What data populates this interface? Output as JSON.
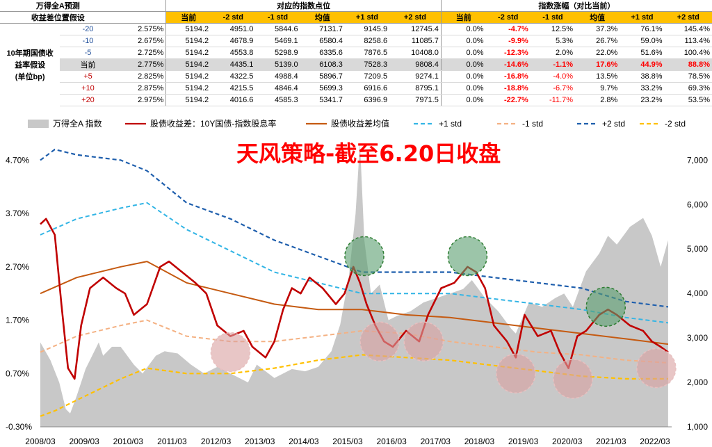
{
  "table": {
    "header_row1": {
      "label1": "万得全A预测",
      "group_points": "对应的指数点位",
      "group_change": "指数涨幅（对比当前）"
    },
    "header_row2": {
      "label2": "收益差位置假设",
      "cols_points": [
        "当前",
        "-2 std",
        "-1 std",
        "均值",
        "+1 std",
        "+2 std"
      ],
      "cols_change": [
        "当前",
        "-2 std",
        "-1 std",
        "均值",
        "+1 std",
        "+2 std"
      ]
    },
    "side_label": [
      "10年期国债收",
      "益率假设",
      "(单位bp)"
    ],
    "rows": [
      {
        "bp": "-20",
        "yield": "2.575%",
        "points": [
          "5194.2",
          "4951.0",
          "5844.6",
          "7131.7",
          "9145.9",
          "12745.4"
        ],
        "change": [
          "0.0%",
          "-4.7%",
          "12.5%",
          "37.3%",
          "76.1%",
          "145.4%"
        ],
        "highlight": false
      },
      {
        "bp": "-10",
        "yield": "2.675%",
        "points": [
          "5194.2",
          "4678.9",
          "5469.1",
          "6580.4",
          "8258.6",
          "11085.7"
        ],
        "change": [
          "0.0%",
          "-9.9%",
          "5.3%",
          "26.7%",
          "59.0%",
          "113.4%"
        ],
        "highlight": false
      },
      {
        "bp": "-5",
        "yield": "2.725%",
        "points": [
          "5194.2",
          "4553.8",
          "5298.9",
          "6335.6",
          "7876.5",
          "10408.0"
        ],
        "change": [
          "0.0%",
          "-12.3%",
          "2.0%",
          "22.0%",
          "51.6%",
          "100.4%"
        ],
        "highlight": false
      },
      {
        "bp": "当前",
        "yield": "2.775%",
        "points": [
          "5194.2",
          "4435.1",
          "5139.0",
          "6108.3",
          "7528.3",
          "9808.4"
        ],
        "change": [
          "0.0%",
          "-14.6%",
          "-1.1%",
          "17.6%",
          "44.9%",
          "88.8%"
        ],
        "highlight": true
      },
      {
        "bp": "+5",
        "yield": "2.825%",
        "points": [
          "5194.2",
          "4322.5",
          "4988.4",
          "5896.7",
          "7209.5",
          "9274.1"
        ],
        "change": [
          "0.0%",
          "-16.8%",
          "-4.0%",
          "13.5%",
          "38.8%",
          "78.5%"
        ],
        "highlight": false
      },
      {
        "bp": "+10",
        "yield": "2.875%",
        "points": [
          "5194.2",
          "4215.5",
          "4846.4",
          "5699.3",
          "6916.6",
          "8795.1"
        ],
        "change": [
          "0.0%",
          "-18.8%",
          "-6.7%",
          "9.7%",
          "33.2%",
          "69.3%"
        ],
        "highlight": false
      },
      {
        "bp": "+20",
        "yield": "2.975%",
        "points": [
          "5194.2",
          "4016.6",
          "4585.3",
          "5341.7",
          "6396.9",
          "7971.5"
        ],
        "change": [
          "0.0%",
          "-22.7%",
          "-11.7%",
          "2.8%",
          "23.2%",
          "53.5%"
        ],
        "highlight": false
      }
    ]
  },
  "chart_data": {
    "type": "line",
    "title": "天风策略-截至6.20日收盘",
    "x_ticks": [
      "2008/03",
      "2009/03",
      "2010/03",
      "2011/03",
      "2012/03",
      "2013/03",
      "2014/03",
      "2015/03",
      "2016/03",
      "2017/03",
      "2018/03",
      "2019/03",
      "2020/03",
      "2021/03",
      "2022/03"
    ],
    "y_left_ticks": [
      "-0.30%",
      "0.70%",
      "1.70%",
      "2.70%",
      "3.70%",
      "4.70%"
    ],
    "y_left_range": [
      -0.3,
      5.2
    ],
    "y_right_ticks": [
      "1,000",
      "2,000",
      "3,000",
      "4,000",
      "5,000",
      "6,000",
      "7,000"
    ],
    "y_right_range": [
      1000,
      7600
    ],
    "legend": [
      "万得全A 指数",
      "股债收益差：10Y国债-指数股息率",
      "股债收益差均值",
      "+1 std",
      "-1 std",
      "+2 std",
      "-2 std"
    ],
    "colors": {
      "index_area": "#c8c8c8",
      "spread": "#c00000",
      "mean": "#c55a11",
      "plus1": "#33b5e5",
      "minus1": "#f4b183",
      "plus2": "#1f5fad",
      "minus2": "#ffc000",
      "circle_green": "#5a9e6f",
      "circle_red": "#d9a0a0"
    },
    "series": [
      {
        "name": "万得全A 指数",
        "axis": "right",
        "x": [
          2008.17,
          2008.4,
          2008.6,
          2008.75,
          2008.85,
          2009.0,
          2009.2,
          2009.5,
          2009.6,
          2009.8,
          2010.0,
          2010.3,
          2010.5,
          2010.8,
          2011.0,
          2011.3,
          2011.6,
          2011.9,
          2012.2,
          2012.5,
          2012.9,
          2013.1,
          2013.5,
          2013.9,
          2014.2,
          2014.5,
          2014.8,
          2015.0,
          2015.2,
          2015.35,
          2015.45,
          2015.55,
          2015.7,
          2015.9,
          2016.1,
          2016.3,
          2016.6,
          2016.9,
          2017.2,
          2017.5,
          2017.8,
          2018.0,
          2018.3,
          2018.6,
          2018.9,
          2019.0,
          2019.3,
          2019.6,
          2019.9,
          2020.1,
          2020.3,
          2020.6,
          2020.9,
          2021.1,
          2021.3,
          2021.6,
          2021.9,
          2022.1,
          2022.3,
          2022.47
        ],
        "y": [
          2900,
          2500,
          2000,
          1400,
          1300,
          1700,
          2300,
          2900,
          2600,
          2800,
          2800,
          2400,
          2200,
          2600,
          2700,
          2650,
          2400,
          2200,
          2350,
          2200,
          2000,
          2400,
          2100,
          2300,
          2250,
          2350,
          2700,
          3300,
          4400,
          5800,
          7400,
          5200,
          4000,
          4200,
          3400,
          3500,
          3600,
          3800,
          3900,
          4000,
          4100,
          4300,
          3900,
          3600,
          3200,
          3100,
          3800,
          3700,
          3900,
          4000,
          3700,
          4500,
          4900,
          5300,
          5100,
          5500,
          5700,
          5300,
          4600,
          5200
        ]
      },
      {
        "name": "股债收益差：10Y国债-指数股息率",
        "axis": "left",
        "x": [
          2008.17,
          2008.3,
          2008.5,
          2008.65,
          2008.8,
          2008.95,
          2009.1,
          2009.3,
          2009.6,
          2009.9,
          2010.1,
          2010.3,
          2010.6,
          2010.9,
          2011.1,
          2011.4,
          2011.7,
          2011.95,
          2012.2,
          2012.5,
          2012.8,
          2013.0,
          2013.3,
          2013.5,
          2013.7,
          2013.9,
          2014.1,
          2014.3,
          2014.6,
          2014.9,
          2015.1,
          2015.3,
          2015.45,
          2015.6,
          2015.8,
          2016.0,
          2016.2,
          2016.5,
          2016.8,
          2017.0,
          2017.3,
          2017.6,
          2017.9,
          2018.1,
          2018.3,
          2018.5,
          2018.8,
          2019.0,
          2019.2,
          2019.5,
          2019.8,
          2020.0,
          2020.2,
          2020.4,
          2020.6,
          2020.9,
          2021.1,
          2021.3,
          2021.6,
          2021.9,
          2022.1,
          2022.3,
          2022.47
        ],
        "y": [
          3.5,
          3.6,
          3.3,
          2.0,
          0.8,
          0.6,
          1.6,
          2.3,
          2.5,
          2.3,
          2.2,
          1.8,
          2.0,
          2.7,
          2.8,
          2.6,
          2.4,
          2.2,
          1.6,
          1.4,
          1.5,
          1.2,
          1.0,
          1.3,
          1.9,
          2.3,
          2.2,
          2.5,
          2.3,
          2.0,
          2.2,
          2.7,
          2.4,
          2.0,
          1.6,
          1.3,
          1.2,
          1.5,
          1.3,
          1.8,
          2.3,
          2.4,
          2.7,
          2.6,
          2.3,
          1.6,
          1.3,
          1.0,
          1.8,
          1.4,
          1.5,
          1.1,
          0.8,
          1.4,
          1.5,
          1.8,
          1.9,
          1.8,
          1.6,
          1.5,
          1.3,
          1.2,
          1.1
        ]
      },
      {
        "name": "股债收益差均值",
        "axis": "left",
        "x": [
          2008.17,
          2009.0,
          2010.0,
          2010.6,
          2011.5,
          2012.5,
          2013.5,
          2014.5,
          2015.5,
          2016.5,
          2017.5,
          2018.5,
          2019.5,
          2020.5,
          2021.5,
          2022.47
        ],
        "y": [
          2.2,
          2.5,
          2.7,
          2.8,
          2.4,
          2.2,
          2.0,
          1.9,
          1.9,
          1.8,
          1.75,
          1.65,
          1.55,
          1.45,
          1.35,
          1.25
        ]
      },
      {
        "name": "+1 std",
        "axis": "left",
        "x": [
          2008.17,
          2009.0,
          2010.0,
          2010.6,
          2011.5,
          2012.5,
          2013.5,
          2014.5,
          2015.5,
          2016.5,
          2017.5,
          2018.5,
          2019.5,
          2020.5,
          2021.5,
          2022.47
        ],
        "y": [
          3.3,
          3.6,
          3.8,
          3.9,
          3.4,
          3.0,
          2.6,
          2.4,
          2.2,
          2.2,
          2.2,
          2.1,
          2.0,
          1.9,
          1.75,
          1.65
        ]
      },
      {
        "name": "-1 std",
        "axis": "left",
        "x": [
          2008.17,
          2009.0,
          2010.0,
          2010.6,
          2011.5,
          2012.5,
          2013.5,
          2014.5,
          2015.5,
          2016.5,
          2017.5,
          2018.5,
          2019.5,
          2020.5,
          2021.5,
          2022.47
        ],
        "y": [
          1.1,
          1.4,
          1.6,
          1.7,
          1.4,
          1.3,
          1.3,
          1.4,
          1.5,
          1.45,
          1.3,
          1.2,
          1.1,
          1.05,
          0.95,
          0.9
        ]
      },
      {
        "name": "+2 std",
        "axis": "left",
        "x": [
          2008.17,
          2008.5,
          2009.0,
          2010.0,
          2010.6,
          2011.5,
          2012.5,
          2013.5,
          2014.5,
          2015.5,
          2016.5,
          2017.5,
          2018.5,
          2019.5,
          2020.5,
          2021.5,
          2022.47
        ],
        "y": [
          4.7,
          4.9,
          4.8,
          4.7,
          4.5,
          3.9,
          3.6,
          3.2,
          2.9,
          2.6,
          2.6,
          2.6,
          2.5,
          2.4,
          2.3,
          2.05,
          1.95
        ]
      },
      {
        "name": "-2 std",
        "axis": "left",
        "x": [
          2008.17,
          2008.5,
          2009.0,
          2010.0,
          2010.6,
          2011.5,
          2012.5,
          2013.5,
          2014.5,
          2015.5,
          2016.5,
          2017.5,
          2018.5,
          2019.5,
          2020.5,
          2021.5,
          2022.47
        ],
        "y": [
          -0.1,
          0.0,
          0.2,
          0.6,
          0.8,
          0.7,
          0.7,
          0.8,
          0.95,
          1.05,
          1.0,
          0.95,
          0.85,
          0.75,
          0.65,
          0.6,
          0.6
        ]
      }
    ],
    "annotations": {
      "green_circles": [
        {
          "x": 2015.55,
          "y": 2.9
        },
        {
          "x": 2017.9,
          "y": 2.9
        },
        {
          "x": 2021.05,
          "y": 1.95
        }
      ],
      "red_circles": [
        {
          "x": 2012.5,
          "y": 1.1
        },
        {
          "x": 2015.9,
          "y": 1.3
        },
        {
          "x": 2016.9,
          "y": 1.3
        },
        {
          "x": 2019.0,
          "y": 0.7
        },
        {
          "x": 2020.3,
          "y": 0.6
        },
        {
          "x": 2022.2,
          "y": 0.8
        }
      ]
    },
    "grid": false,
    "legend_position": "top"
  }
}
